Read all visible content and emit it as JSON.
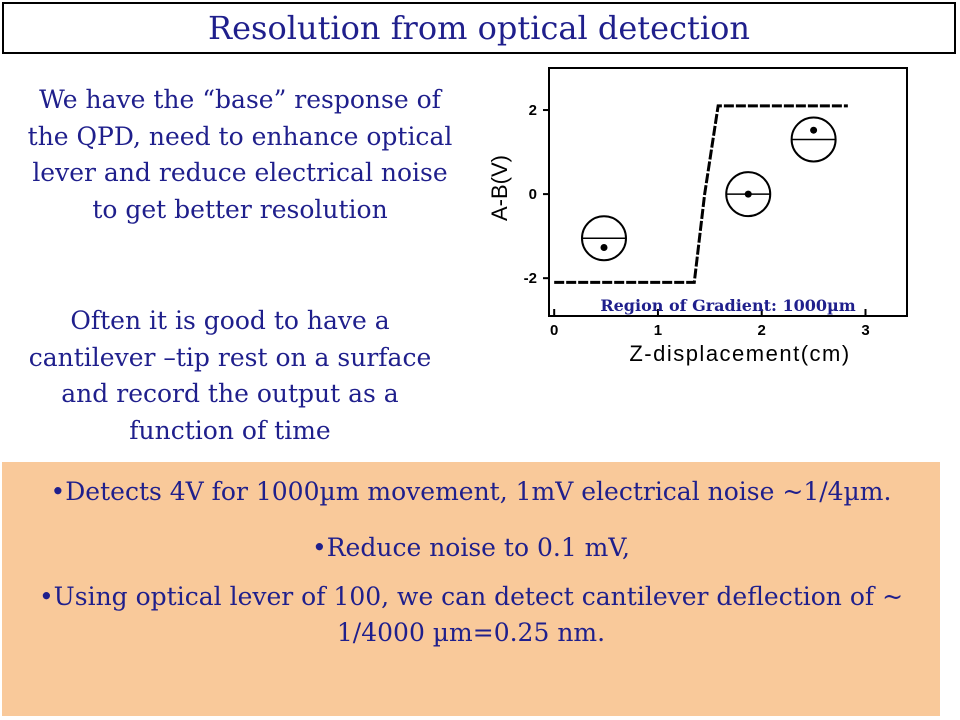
{
  "slide": {
    "title": "Resolution from optical detection",
    "paragraph1": "We have the “base” response of the QPD, need to enhance optical lever and reduce electrical noise to get better resolution",
    "paragraph2": "Often it is good to have a cantilever –tip rest on a surface and record the output as a function of time",
    "bullets": [
      "•Detects 4V for 1000µm movement, 1mV electrical noise ~1/4µm.",
      "•Reduce noise to 0.1 mV,",
      "•Using optical lever of 100, we can detect cantilever deflection of ~ 1/4000 µm=0.25 nm."
    ],
    "colors": {
      "text": "#1f1f8c",
      "bottom_bg": "#f9c99a",
      "plot": "#000000"
    }
  },
  "chart_data": {
    "type": "line",
    "title": "",
    "xlabel": "Z-displacement(cm)",
    "ylabel": "A-B(V)",
    "x_ticks": [
      "0",
      "1",
      "2",
      "3"
    ],
    "y_ticks": [
      "2",
      "0",
      "-2"
    ],
    "xlim": [
      -0.05,
      3.4
    ],
    "ylim": [
      -2.9,
      3.0
    ],
    "grid": false,
    "series": [
      {
        "x": [
          0.0,
          1.35,
          1.45,
          1.58,
          2.83
        ],
        "values": [
          -2.1,
          -2.1,
          0.0,
          2.1,
          2.1
        ]
      }
    ],
    "annotations": [
      "Region of Gradient: 1000µm"
    ],
    "detector_markers": [
      {
        "x": 0.48,
        "y": -1.05,
        "dot_offset": -0.22
      },
      {
        "x": 1.87,
        "y": 0.0,
        "dot_offset": 0.0
      },
      {
        "x": 2.5,
        "y": 1.3,
        "dot_offset": 0.22
      }
    ]
  }
}
